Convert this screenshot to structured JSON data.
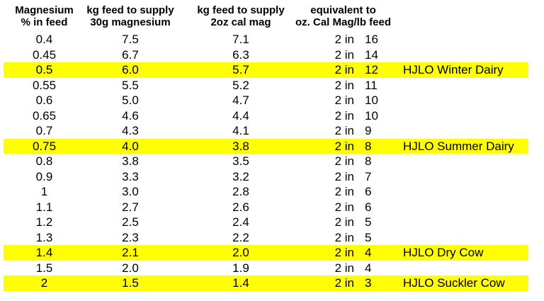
{
  "page": {
    "background": "#ffffff",
    "text_color": "#000000"
  },
  "table": {
    "highlight_color": "#ffff00",
    "headers": [
      {
        "line1": "Magnesium",
        "line2": "% in feed"
      },
      {
        "line1": "kg feed to supply",
        "line2": "30g magnesium"
      },
      {
        "line1": "kg feed to supply",
        "line2": "2oz cal mag"
      },
      {
        "line1": "equivalent to",
        "line2": "oz. Cal Mag/lb feed"
      }
    ],
    "rows": [
      {
        "mg": "0.4",
        "kg30": "7.5",
        "kg2oz": "7.1",
        "ratio_prefix": "2 in",
        "ratio_value": "16",
        "label": "",
        "highlight": false
      },
      {
        "mg": "0.45",
        "kg30": "6.7",
        "kg2oz": "6.3",
        "ratio_prefix": "2 in",
        "ratio_value": "14",
        "label": "",
        "highlight": false
      },
      {
        "mg": "0.5",
        "kg30": "6.0",
        "kg2oz": "5.7",
        "ratio_prefix": "2 in",
        "ratio_value": "12",
        "label": "HJLO Winter Dairy",
        "highlight": true
      },
      {
        "mg": "0.55",
        "kg30": "5.5",
        "kg2oz": "5.2",
        "ratio_prefix": "2 in",
        "ratio_value": "11",
        "label": "",
        "highlight": false
      },
      {
        "mg": "0.6",
        "kg30": "5.0",
        "kg2oz": "4.7",
        "ratio_prefix": "2 in",
        "ratio_value": "10",
        "label": "",
        "highlight": false
      },
      {
        "mg": "0.65",
        "kg30": "4.6",
        "kg2oz": "4.4",
        "ratio_prefix": "2 in",
        "ratio_value": "10",
        "label": "",
        "highlight": false
      },
      {
        "mg": "0.7",
        "kg30": "4.3",
        "kg2oz": "4.1",
        "ratio_prefix": "2 in",
        "ratio_value": "9",
        "label": "",
        "highlight": false
      },
      {
        "mg": "0.75",
        "kg30": "4.0",
        "kg2oz": "3.8",
        "ratio_prefix": "2 in",
        "ratio_value": "8",
        "label": "HJLO Summer Dairy",
        "highlight": true
      },
      {
        "mg": "0.8",
        "kg30": "3.8",
        "kg2oz": "3.5",
        "ratio_prefix": "2 in",
        "ratio_value": "8",
        "label": "",
        "highlight": false
      },
      {
        "mg": "0.9",
        "kg30": "3.3",
        "kg2oz": "3.2",
        "ratio_prefix": "2 in",
        "ratio_value": "7",
        "label": "",
        "highlight": false
      },
      {
        "mg": "1",
        "kg30": "3.0",
        "kg2oz": "2.8",
        "ratio_prefix": "2 in",
        "ratio_value": "6",
        "label": "",
        "highlight": false
      },
      {
        "mg": "1.1",
        "kg30": "2.7",
        "kg2oz": "2.6",
        "ratio_prefix": "2 in",
        "ratio_value": "6",
        "label": "",
        "highlight": false
      },
      {
        "mg": "1.2",
        "kg30": "2.5",
        "kg2oz": "2.4",
        "ratio_prefix": "2 in",
        "ratio_value": "5",
        "label": "",
        "highlight": false
      },
      {
        "mg": "1.3",
        "kg30": "2.3",
        "kg2oz": "2.2",
        "ratio_prefix": "2 in",
        "ratio_value": "5",
        "label": "",
        "highlight": false
      },
      {
        "mg": "1.4",
        "kg30": "2.1",
        "kg2oz": "2.0",
        "ratio_prefix": "2 in",
        "ratio_value": "4",
        "label": "HJLO Dry Cow",
        "highlight": true
      },
      {
        "mg": "1.5",
        "kg30": "2.0",
        "kg2oz": "1.9",
        "ratio_prefix": "2 in",
        "ratio_value": "4",
        "label": "",
        "highlight": false
      },
      {
        "mg": "2",
        "kg30": "1.5",
        "kg2oz": "1.4",
        "ratio_prefix": "2 in",
        "ratio_value": "3",
        "label": "HJLO Suckler Cow",
        "highlight": true
      }
    ]
  }
}
